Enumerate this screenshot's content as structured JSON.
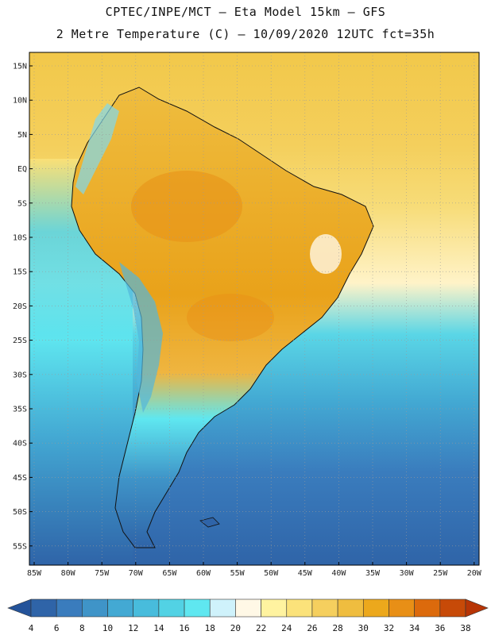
{
  "header": {
    "line1": "CPTEC/INPE/MCT –  Eta Model 15km – GFS",
    "line2": "2 Metre Temperature (C) – 10/09/2020 12UTC fct=35h"
  },
  "axes": {
    "lat_labels": [
      "15N",
      "10N",
      "5N",
      "EQ",
      "5S",
      "10S",
      "15S",
      "20S",
      "25S",
      "30S",
      "35S",
      "40S",
      "45S",
      "50S",
      "55S"
    ],
    "lon_labels": [
      "85W",
      "80W",
      "75W",
      "70W",
      "65W",
      "60W",
      "55W",
      "50W",
      "45W",
      "40W",
      "35W",
      "30W",
      "25W",
      "20W"
    ]
  },
  "colorbar": {
    "labels": [
      "4",
      "6",
      "8",
      "10",
      "12",
      "14",
      "16",
      "18",
      "20",
      "22",
      "24",
      "26",
      "28",
      "30",
      "32",
      "34",
      "36",
      "38"
    ],
    "colors": [
      "#2f64a8",
      "#3a7cbd",
      "#3f94c8",
      "#43a9d3",
      "#48bcdc",
      "#52d2e4",
      "#5fe7f0",
      "#cff2fb",
      "#fff8e6",
      "#fff3a0",
      "#fbe27a",
      "#f5cf5e",
      "#efbd3f",
      "#eca81c",
      "#e88f16",
      "#dc6a0c",
      "#c74a08"
    ],
    "end_left_color": "#24539a",
    "end_right_color": "#b73506"
  }
}
